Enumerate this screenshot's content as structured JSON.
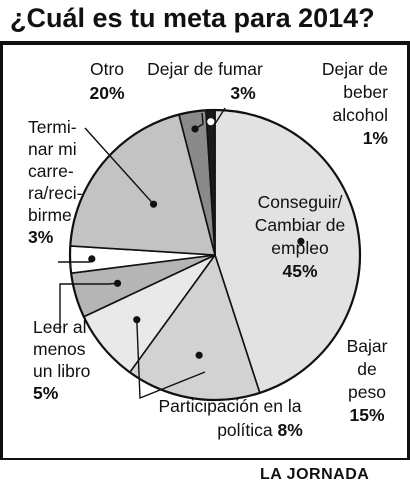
{
  "title": "¿Cuál es tu meta para 2014?",
  "source": "LA JORNADA",
  "chart_data": {
    "type": "pie",
    "title": "¿Cuál es tu meta para 2014?",
    "slices": [
      {
        "id": "empleo",
        "label_lines": [
          "Conseguir/",
          "Cambiar de",
          "empleo"
        ],
        "pct_text": "45%",
        "value": 45,
        "color": "#e2e2e2"
      },
      {
        "id": "peso",
        "label_lines": [
          "Bajar",
          "de",
          "peso"
        ],
        "pct_text": "15%",
        "value": 15,
        "color": "#d2d2d2"
      },
      {
        "id": "politica",
        "label_lines": [
          "Participación en la",
          "política"
        ],
        "pct_text": "8%",
        "value": 8,
        "color": "#e9e9e9"
      },
      {
        "id": "libro",
        "label_lines": [
          "Leer al",
          "menos",
          "un libro"
        ],
        "pct_text": "5%",
        "value": 5,
        "color": "#b5b5b5"
      },
      {
        "id": "carrera",
        "label_lines": [
          "Termi-",
          "nar mi",
          "carre-",
          "ra/reci-",
          "birme"
        ],
        "pct_text": "3%",
        "value": 3,
        "color": "#ffffff"
      },
      {
        "id": "otro",
        "label_lines": [
          "Otro"
        ],
        "pct_text": "20%",
        "value": 20,
        "color": "#c3c3c3"
      },
      {
        "id": "fumar",
        "label_lines": [
          "Dejar de fumar"
        ],
        "pct_text": "3%",
        "value": 3,
        "color": "#8a8a8a"
      },
      {
        "id": "alcohol",
        "label_lines": [
          "Dejar de",
          "beber",
          "alcohol"
        ],
        "pct_text": "1%",
        "value": 1,
        "color": "#1a1a1a"
      }
    ]
  }
}
